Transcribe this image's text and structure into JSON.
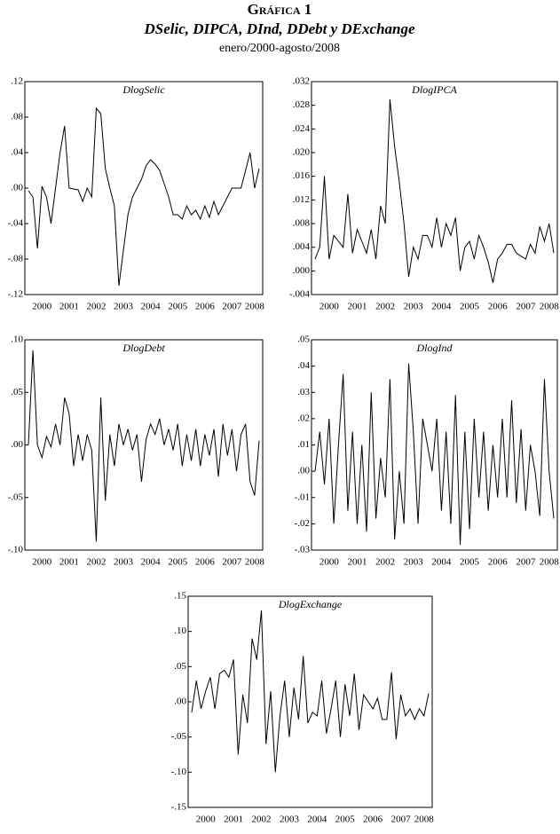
{
  "figure": {
    "label": "Gráfica 1",
    "title": "DSelic, DIPCA, DInd, DDebt y DExchange",
    "subtitle": "enero/2000-agosto/2008"
  },
  "chart_data": [
    {
      "type": "line",
      "title": "DlogSelic",
      "color": "#000000",
      "categories": [
        null,
        null,
        null,
        "2000",
        null,
        null,
        null,
        null,
        null,
        "2001",
        null,
        null,
        null,
        null,
        null,
        "2002",
        null,
        null,
        null,
        null,
        null,
        "2003",
        null,
        null,
        null,
        null,
        null,
        "2004",
        null,
        null,
        null,
        null,
        null,
        "2005",
        null,
        null,
        null,
        null,
        null,
        "2006",
        null,
        null,
        null,
        null,
        null,
        "2007",
        null,
        null,
        null,
        null,
        "2008",
        null
      ],
      "values": [
        -0.003,
        -0.01,
        -0.068,
        0.002,
        -0.01,
        -0.04,
        0.0,
        0.04,
        0.07,
        0.0,
        -0.001,
        -0.002,
        -0.015,
        0.0,
        -0.01,
        0.09,
        0.084,
        0.022,
        0.0,
        -0.02,
        -0.11,
        -0.07,
        -0.03,
        -0.01,
        0.0,
        0.01,
        0.025,
        0.032,
        0.027,
        0.02,
        0.005,
        -0.01,
        -0.03,
        -0.03,
        -0.035,
        -0.02,
        -0.03,
        -0.025,
        -0.035,
        -0.02,
        -0.033,
        -0.015,
        -0.03,
        -0.02,
        -0.01,
        0.0,
        0.0,
        0.0,
        0.02,
        0.04,
        0.0,
        0.022
      ],
      "ylim": [
        -0.12,
        0.12
      ],
      "yticks": [
        {
          "value": 0.12,
          "label": ".12"
        },
        {
          "value": 0.08,
          "label": ".08"
        },
        {
          "value": 0.04,
          "label": ".04"
        },
        {
          "value": 0,
          "label": ".00"
        },
        {
          "value": -0.04,
          "label": "-.04"
        },
        {
          "value": -0.08,
          "label": "-.08"
        },
        {
          "value": -0.12,
          "label": "-.12"
        }
      ]
    },
    {
      "type": "line",
      "title": "DlogIPCA",
      "color": "#000000",
      "categories": [
        null,
        null,
        null,
        "2000",
        null,
        null,
        null,
        null,
        null,
        "2001",
        null,
        null,
        null,
        null,
        null,
        "2002",
        null,
        null,
        null,
        null,
        null,
        "2003",
        null,
        null,
        null,
        null,
        null,
        "2004",
        null,
        null,
        null,
        null,
        null,
        "2005",
        null,
        null,
        null,
        null,
        null,
        "2006",
        null,
        null,
        null,
        null,
        null,
        "2007",
        null,
        null,
        null,
        null,
        "2008",
        null
      ],
      "values": [
        0.002,
        0.004,
        0.016,
        0.002,
        0.006,
        0.005,
        0.004,
        0.013,
        0.003,
        0.007,
        0.005,
        0.003,
        0.007,
        0.002,
        0.011,
        0.008,
        0.029,
        0.021,
        0.015,
        0.008,
        -0.001,
        0.004,
        0.002,
        0.006,
        0.006,
        0.004,
        0.009,
        0.004,
        0.008,
        0.006,
        0.009,
        0.0,
        0.004,
        0.005,
        0.002,
        0.006,
        0.004,
        0.0015,
        -0.002,
        0.002,
        0.003,
        0.0045,
        0.0045,
        0.003,
        0.0025,
        0.002,
        0.0045,
        0.003,
        0.0075,
        0.005,
        0.008,
        0.003
      ],
      "ylim": [
        -0.004,
        0.032
      ],
      "yticks": [
        {
          "value": 0.032,
          "label": ".032"
        },
        {
          "value": 0.028,
          "label": ".028"
        },
        {
          "value": 0.024,
          "label": ".024"
        },
        {
          "value": 0.02,
          "label": ".020"
        },
        {
          "value": 0.016,
          "label": ".016"
        },
        {
          "value": 0.012,
          "label": ".012"
        },
        {
          "value": 0.008,
          "label": ".008"
        },
        {
          "value": 0.004,
          "label": ".004"
        },
        {
          "value": 0,
          "label": ".000"
        },
        {
          "value": -0.004,
          "label": "-.004"
        }
      ]
    },
    {
      "type": "line",
      "title": "DlogDebt",
      "color": "#000000",
      "categories": [
        null,
        null,
        null,
        "2000",
        null,
        null,
        null,
        null,
        null,
        "2001",
        null,
        null,
        null,
        null,
        null,
        "2002",
        null,
        null,
        null,
        null,
        null,
        "2003",
        null,
        null,
        null,
        null,
        null,
        "2004",
        null,
        null,
        null,
        null,
        null,
        "2005",
        null,
        null,
        null,
        null,
        null,
        "2006",
        null,
        null,
        null,
        null,
        null,
        "2007",
        null,
        null,
        null,
        null,
        "2008",
        null
      ],
      "values": [
        0.0,
        0.09,
        0.0,
        -0.012,
        0.008,
        -0.002,
        0.02,
        0.0,
        0.045,
        0.03,
        -0.02,
        0.01,
        -0.015,
        0.01,
        -0.005,
        -0.092,
        0.045,
        -0.053,
        0.01,
        -0.02,
        0.02,
        0.0,
        0.015,
        -0.005,
        0.01,
        -0.035,
        0.005,
        0.02,
        0.01,
        0.025,
        0.0,
        0.015,
        -0.005,
        0.02,
        -0.02,
        0.01,
        -0.015,
        0.015,
        -0.02,
        0.01,
        -0.01,
        0.015,
        -0.03,
        0.02,
        -0.01,
        0.015,
        -0.025,
        0.01,
        0.02,
        -0.035,
        -0.048,
        0.004
      ],
      "ylim": [
        -0.1,
        0.1
      ],
      "yticks": [
        {
          "value": 0.1,
          "label": ".10"
        },
        {
          "value": 0.05,
          "label": ".05"
        },
        {
          "value": 0,
          "label": ".00"
        },
        {
          "value": -0.05,
          "label": "-.05"
        },
        {
          "value": -0.1,
          "label": "-.10"
        }
      ]
    },
    {
      "type": "line",
      "title": "DlogInd",
      "color": "#000000",
      "categories": [
        null,
        null,
        null,
        "2000",
        null,
        null,
        null,
        null,
        null,
        "2001",
        null,
        null,
        null,
        null,
        null,
        "2002",
        null,
        null,
        null,
        null,
        null,
        "2003",
        null,
        null,
        null,
        null,
        null,
        "2004",
        null,
        null,
        null,
        null,
        null,
        "2005",
        null,
        null,
        null,
        null,
        null,
        "2006",
        null,
        null,
        null,
        null,
        null,
        "2007",
        null,
        null,
        null,
        null,
        "2008",
        null
      ],
      "values": [
        0.0,
        0.015,
        -0.005,
        0.02,
        -0.02,
        0.01,
        0.037,
        -0.015,
        0.015,
        -0.02,
        0.01,
        -0.023,
        0.03,
        -0.018,
        0.005,
        -0.01,
        0.035,
        -0.026,
        0.0,
        -0.02,
        0.041,
        0.015,
        -0.02,
        0.02,
        0.01,
        0.0,
        0.02,
        -0.015,
        0.015,
        -0.02,
        0.029,
        -0.028,
        0.015,
        -0.022,
        0.02,
        -0.01,
        0.015,
        -0.015,
        0.01,
        -0.01,
        0.02,
        -0.01,
        0.027,
        -0.012,
        0.016,
        -0.015,
        0.01,
        0.0,
        -0.017,
        0.035,
        0.0,
        -0.018
      ],
      "ylim": [
        -0.03,
        0.05
      ],
      "yticks": [
        {
          "value": 0.05,
          "label": ".05"
        },
        {
          "value": 0.04,
          "label": ".04"
        },
        {
          "value": 0.03,
          "label": ".03"
        },
        {
          "value": 0.02,
          "label": ".02"
        },
        {
          "value": 0.01,
          "label": ".01"
        },
        {
          "value": 0,
          "label": ".00"
        },
        {
          "value": -0.01,
          "label": "-.01"
        },
        {
          "value": -0.02,
          "label": "-.02"
        },
        {
          "value": -0.03,
          "label": "-.03"
        }
      ]
    },
    {
      "type": "line",
      "title": "DlogExchange",
      "color": "#000000",
      "categories": [
        null,
        null,
        null,
        "2000",
        null,
        null,
        null,
        null,
        null,
        "2001",
        null,
        null,
        null,
        null,
        null,
        "2002",
        null,
        null,
        null,
        null,
        null,
        "2003",
        null,
        null,
        null,
        null,
        null,
        "2004",
        null,
        null,
        null,
        null,
        null,
        "2005",
        null,
        null,
        null,
        null,
        null,
        "2006",
        null,
        null,
        null,
        null,
        null,
        "2007",
        null,
        null,
        null,
        null,
        "2008",
        null
      ],
      "values": [
        -0.015,
        0.03,
        -0.01,
        0.015,
        0.035,
        -0.01,
        0.04,
        0.045,
        0.035,
        0.06,
        -0.075,
        0.01,
        -0.03,
        0.09,
        0.06,
        0.13,
        -0.06,
        0.015,
        -0.1,
        -0.02,
        0.03,
        -0.05,
        0.02,
        -0.025,
        0.065,
        -0.03,
        -0.015,
        -0.02,
        0.03,
        -0.045,
        -0.01,
        0.03,
        -0.05,
        0.025,
        -0.02,
        0.04,
        -0.04,
        0.01,
        0.0,
        -0.01,
        0.005,
        -0.025,
        -0.025,
        0.042,
        -0.053,
        0.01,
        -0.02,
        -0.01,
        -0.025,
        -0.01,
        -0.02,
        0.012
      ],
      "ylim": [
        -0.15,
        0.15
      ],
      "yticks": [
        {
          "value": 0.15,
          "label": ".15"
        },
        {
          "value": 0.1,
          "label": ".10"
        },
        {
          "value": 0.05,
          "label": ".05"
        },
        {
          "value": 0,
          "label": ".00"
        },
        {
          "value": -0.05,
          "label": "-.05"
        },
        {
          "value": -0.1,
          "label": "-.10"
        },
        {
          "value": -0.15,
          "label": "-.15"
        }
      ]
    }
  ]
}
